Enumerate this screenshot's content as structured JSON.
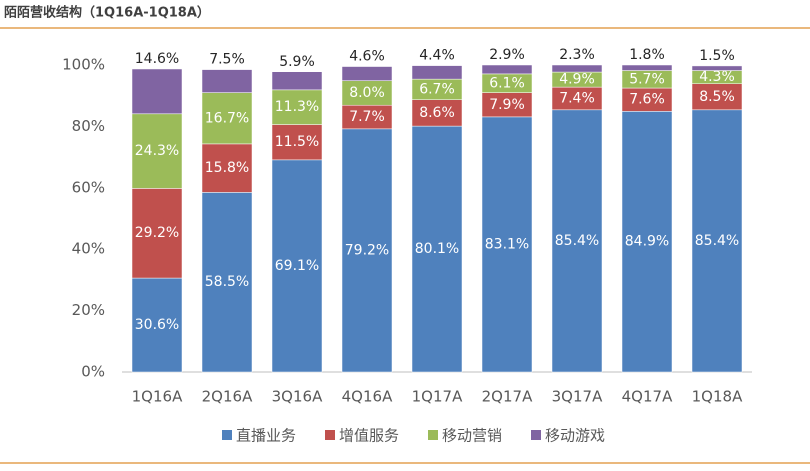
{
  "chart_data": {
    "type": "stacked_bar",
    "title": "陌陌营收结构（1Q16A-1Q18A）",
    "categories": [
      "1Q16A",
      "2Q16A",
      "3Q16A",
      "4Q16A",
      "1Q17A",
      "2Q17A",
      "3Q17A",
      "4Q17A",
      "1Q18A"
    ],
    "series": [
      {
        "name": "直播业务",
        "color": "#4f81bd",
        "values": [
          30.6,
          58.5,
          69.1,
          79.2,
          80.1,
          83.1,
          85.4,
          84.9,
          85.4
        ],
        "value_labels": [
          "30.6%",
          "58.5%",
          "69.1%",
          "79.2%",
          "80.1%",
          "83.1%",
          "85.4%",
          "84.9%",
          "85.4%"
        ]
      },
      {
        "name": "增值服务",
        "color": "#c0504d",
        "values": [
          29.2,
          15.8,
          11.5,
          7.7,
          8.6,
          7.9,
          7.4,
          7.6,
          8.5
        ],
        "value_labels": [
          "29.2%",
          "15.8%",
          "11.5%",
          "7.7%",
          "8.6%",
          "7.9%",
          "7.4%",
          "7.6%",
          "8.5%"
        ]
      },
      {
        "name": "移动营销",
        "color": "#9bbb59",
        "values": [
          24.3,
          16.7,
          11.3,
          8.0,
          6.7,
          6.1,
          4.9,
          5.7,
          4.3
        ],
        "value_labels": [
          "24.3%",
          "16.7%",
          "11.3%",
          "8.0%",
          "6.7%",
          "6.1%",
          "4.9%",
          "5.7%",
          "4.3%"
        ]
      },
      {
        "name": "移动游戏",
        "color": "#8064a2",
        "values": [
          14.6,
          7.5,
          5.9,
          4.6,
          4.4,
          2.9,
          2.3,
          1.8,
          1.5
        ],
        "value_labels": [
          "14.6%",
          "7.5%",
          "5.9%",
          "4.6%",
          "4.4%",
          "2.9%",
          "2.3%",
          "1.8%",
          "1.5%"
        ]
      }
    ],
    "ylim": [
      0,
      100
    ],
    "yticks": [
      {
        "value": 0,
        "label": "0%"
      },
      {
        "value": 20,
        "label": "20%"
      },
      {
        "value": 40,
        "label": "40%"
      },
      {
        "value": 60,
        "label": "60%"
      },
      {
        "value": 80,
        "label": "80%"
      },
      {
        "value": 100,
        "label": "100%"
      }
    ]
  }
}
